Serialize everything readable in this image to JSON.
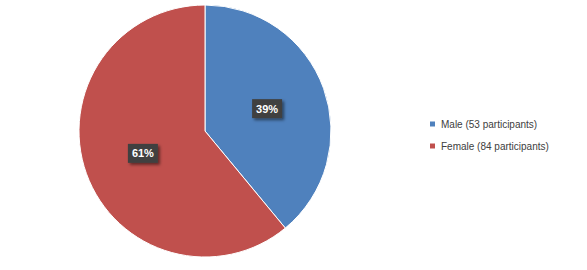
{
  "chart_data": {
    "type": "pie",
    "categories": [
      "Male (53 participants)",
      "Female (84 participants)"
    ],
    "values": [
      39,
      61
    ],
    "value_labels": [
      "39%",
      "61%"
    ],
    "colors": [
      "#4f81bd",
      "#c0504d"
    ],
    "data_labels": true,
    "legend": "right"
  }
}
